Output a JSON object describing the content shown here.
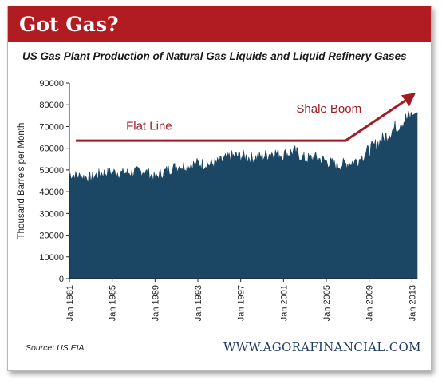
{
  "header": {
    "title": "Got Gas?"
  },
  "chart_data": {
    "type": "area",
    "title": "US Gas Plant Production of Natural Gas Liquids and Liquid Refinery Gases",
    "xlabel": "",
    "ylabel": "Thousand Barrels per Month",
    "ylim": [
      0,
      90000
    ],
    "yticks": [
      0,
      10000,
      20000,
      30000,
      40000,
      50000,
      60000,
      70000,
      80000,
      90000
    ],
    "xticks": [
      "Jan 1981",
      "Jan 1985",
      "Jan 1989",
      "Jan 1993",
      "Jan 1997",
      "Jan 2001",
      "Jan 2005",
      "Jan 2009",
      "Jan 2013"
    ],
    "x_range": [
      1981,
      2013.5
    ],
    "grid": false,
    "series": [
      {
        "name": "",
        "color": "#1b4764",
        "x": [
          1981,
          1982,
          1983,
          1984,
          1985,
          1986,
          1987,
          1988,
          1989,
          1990,
          1991,
          1992,
          1993,
          1994,
          1995,
          1996,
          1997,
          1998,
          1999,
          2000,
          2001,
          2002,
          2003,
          2004,
          2005,
          2006,
          2007,
          2008,
          2009,
          2010,
          2011,
          2012,
          2013
        ],
        "values": [
          48000,
          47000,
          46500,
          48500,
          49000,
          48500,
          49000,
          49500,
          46500,
          49500,
          51500,
          52000,
          53000,
          52500,
          53500,
          56000,
          56500,
          55500,
          56000,
          58000,
          57000,
          58500,
          55000,
          55500,
          54000,
          52000,
          53000,
          54500,
          59000,
          63000,
          67500,
          72000,
          75000
        ]
      }
    ],
    "annotations": [
      {
        "text": "Flat Line",
        "color": "#a01b24"
      },
      {
        "text": "Shale Boom",
        "color": "#a01b24"
      }
    ]
  },
  "footer": {
    "source": "Source: US EIA",
    "website": "WWW.AGORAFINANCIAL.COM"
  },
  "colors": {
    "banner": "#b01c22",
    "area": "#1b4764",
    "annotation": "#a01b24"
  }
}
